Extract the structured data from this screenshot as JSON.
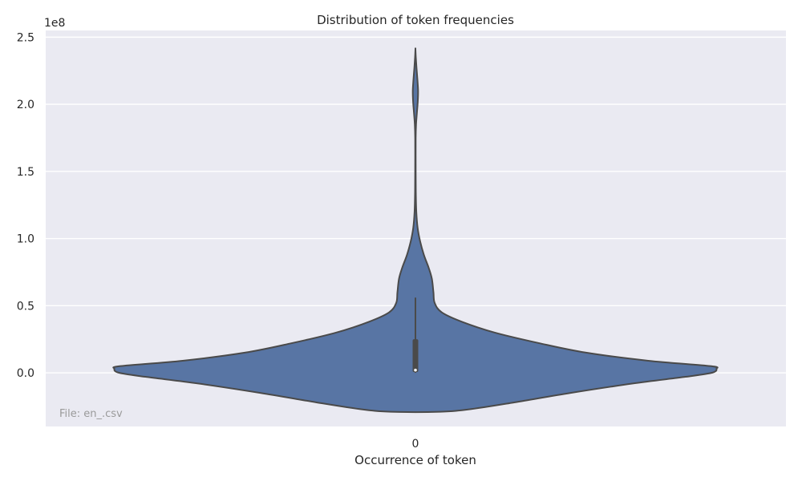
{
  "chart_data": {
    "type": "violin",
    "title": "Distribution of token frequencies",
    "xlabel": "Occurrence of token",
    "ylabel": "",
    "y_offset_label": "1e8",
    "y_scale": 100000000.0,
    "categories": [
      "0"
    ],
    "ylim": [
      -0.4,
      2.55
    ],
    "yticks": [
      0.0,
      0.5,
      1.0,
      1.5,
      2.0,
      2.5
    ],
    "ytick_labels": [
      "0.0",
      "0.5",
      "1.0",
      "1.5",
      "2.0",
      "2.5"
    ],
    "grid": true,
    "violin_color": "#5875a4",
    "edge_color": "#4a4a4a",
    "background": "#eaeaf2",
    "density_profile": [
      {
        "y": -0.29,
        "w": 0.08
      },
      {
        "y": -0.27,
        "w": 0.18
      },
      {
        "y": -0.22,
        "w": 0.32
      },
      {
        "y": -0.15,
        "w": 0.5
      },
      {
        "y": -0.08,
        "w": 0.7
      },
      {
        "y": -0.03,
        "w": 0.87
      },
      {
        "y": 0.0,
        "w": 0.955
      },
      {
        "y": 0.03,
        "w": 0.97
      },
      {
        "y": 0.05,
        "w": 0.95
      },
      {
        "y": 0.09,
        "w": 0.75
      },
      {
        "y": 0.15,
        "w": 0.55
      },
      {
        "y": 0.22,
        "w": 0.4
      },
      {
        "y": 0.3,
        "w": 0.255
      },
      {
        "y": 0.38,
        "w": 0.15
      },
      {
        "y": 0.45,
        "w": 0.085
      },
      {
        "y": 0.52,
        "w": 0.062
      },
      {
        "y": 0.6,
        "w": 0.058
      },
      {
        "y": 0.7,
        "w": 0.053
      },
      {
        "y": 0.78,
        "w": 0.043
      },
      {
        "y": 0.88,
        "w": 0.027
      },
      {
        "y": 0.98,
        "w": 0.015
      },
      {
        "y": 1.08,
        "w": 0.007
      },
      {
        "y": 1.2,
        "w": 0.0028
      },
      {
        "y": 1.35,
        "w": 0.0012
      },
      {
        "y": 1.55,
        "w": 0.0008
      },
      {
        "y": 1.75,
        "w": 0.0008
      },
      {
        "y": 1.85,
        "w": 0.002
      },
      {
        "y": 1.93,
        "w": 0.0045
      },
      {
        "y": 2.02,
        "w": 0.0075
      },
      {
        "y": 2.1,
        "w": 0.0085
      },
      {
        "y": 2.18,
        "w": 0.0065
      },
      {
        "y": 2.27,
        "w": 0.0035
      },
      {
        "y": 2.35,
        "w": 0.0012
      },
      {
        "y": 2.41,
        "w": 0.0
      }
    ],
    "box": {
      "q1": 0.005,
      "median": 0.02,
      "q3": 0.25,
      "whisker_low": 0.0,
      "whisker_high": 0.56
    },
    "annotation": "File: en_.csv"
  }
}
